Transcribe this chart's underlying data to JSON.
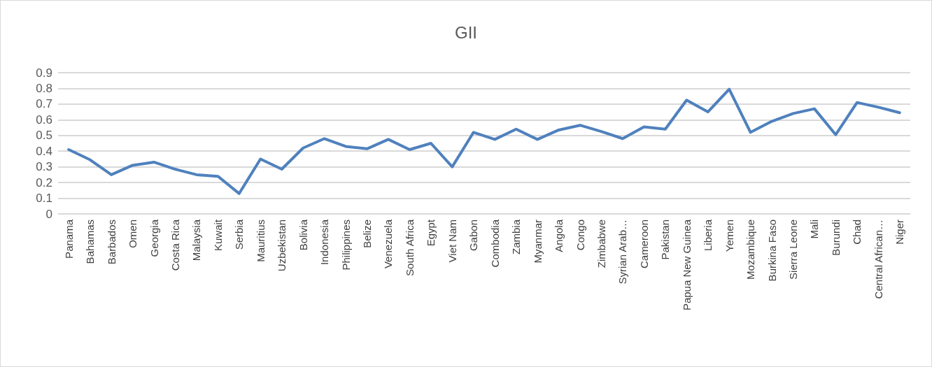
{
  "chart_data": {
    "type": "line",
    "title": "GII",
    "categories": [
      "Panama",
      "Bahamas",
      "Barbados",
      "Omen",
      "Georgia",
      "Costa Rica",
      "Malaysia",
      "Kuwait",
      "Serbia",
      "Mauritius",
      "Uzbekistan",
      "Bolivia",
      "Indonesia",
      "Philippines",
      "Belize",
      "Venezuela",
      "South Africa",
      "Egypt",
      "Viet Nam",
      "Gabon",
      "Combodia",
      "Zambia",
      "Myanmar",
      "Angola",
      "Congo",
      "Zimbabwe",
      "Syrian Arab…",
      "Cameroon",
      "Pakistan",
      "Papua New Guinea",
      "Liberia",
      "Yemen",
      "Mozambique",
      "Burkina Faso",
      "Sierra Leone",
      "Mali",
      "Burundi",
      "Chad",
      "Central African…",
      "Niger"
    ],
    "series": [
      {
        "color": "#4f81bd",
        "values": [
          0.41,
          0.345,
          0.25,
          0.31,
          0.33,
          0.285,
          0.25,
          0.24,
          0.13,
          0.35,
          0.285,
          0.42,
          0.48,
          0.43,
          0.415,
          0.475,
          0.41,
          0.45,
          0.3,
          0.52,
          0.475,
          0.54,
          0.475,
          0.535,
          0.565,
          0.525,
          0.48,
          0.555,
          0.54,
          0.725,
          0.65,
          0.795,
          0.52,
          0.59,
          0.64,
          0.67,
          0.505,
          0.71,
          0.68,
          0.645
        ]
      }
    ],
    "ylim": [
      0,
      0.9
    ],
    "yticks": [
      0,
      0.1,
      0.2,
      0.3,
      0.4,
      0.5,
      0.6,
      0.7,
      0.8,
      0.9
    ],
    "grid": "y",
    "marker": "none",
    "line_style": "solid"
  }
}
